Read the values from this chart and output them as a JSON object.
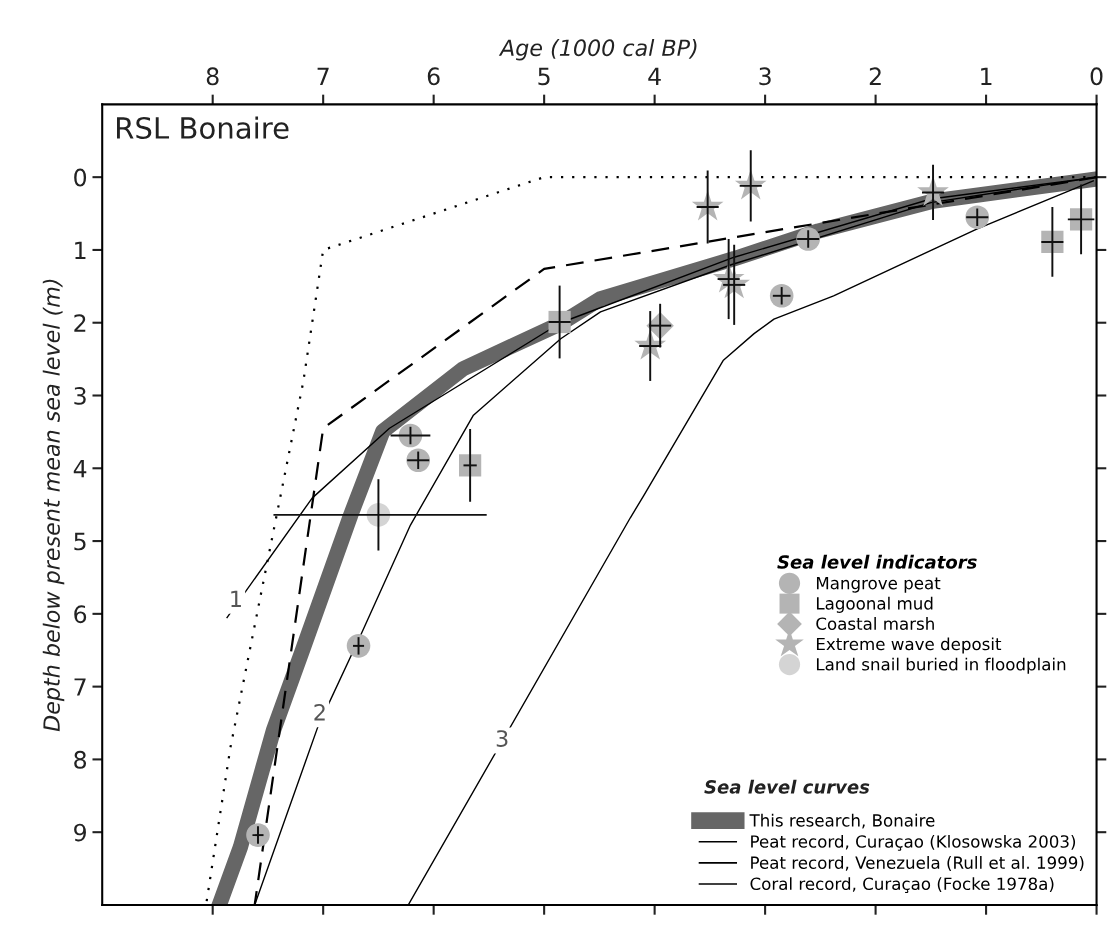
{
  "chart_data": {
    "type": "scatter",
    "title": "RSL Bonaire",
    "xlabel": "Age (1000 cal BP)",
    "ylabel": "Depth below present mean sea level (m)",
    "xlim": [
      9,
      0
    ],
    "ylim": [
      10,
      -1
    ],
    "xticks": [
      8,
      7,
      6,
      5,
      4,
      3,
      2,
      1,
      0
    ],
    "yticks": [
      0,
      1,
      2,
      3,
      4,
      5,
      6,
      7,
      8,
      9
    ],
    "grid": false,
    "legend": "bottom right",
    "legend_title": "Sea level indicators",
    "series": [
      {
        "name": "Mangrove peat",
        "marker": "circle",
        "color": "#b4b4b4",
        "x": [
          6.21,
          6.14,
          2.61,
          1.08,
          2.85,
          6.68,
          7.59
        ],
        "values": [
          3.55,
          3.89,
          0.85,
          0.55,
          1.63,
          6.44,
          9.04
        ],
        "errors": [
          0.12,
          0.12,
          0.12,
          0.12,
          0.12,
          0.12,
          0.12
        ],
        "xerrors": [
          0.18,
          0.1,
          0.1,
          0.1,
          0.08,
          0.05,
          0.05
        ]
      },
      {
        "name": "Lagoonal mud",
        "marker": "square",
        "color": "#b4b4b4",
        "x": [
          4.86,
          5.67,
          0.4,
          0.14
        ],
        "values": [
          1.99,
          3.96,
          0.89,
          0.58
        ],
        "errors": [
          0.5,
          0.5,
          0.48,
          0.48
        ],
        "xerrors": [
          0.1,
          0.06,
          0.1,
          0.12
        ]
      },
      {
        "name": "Coastal marsh",
        "marker": "diamond",
        "color": "#b4b4b4",
        "x": [
          3.95
        ],
        "values": [
          2.04
        ],
        "errors": [
          0.3
        ],
        "xerrors": [
          0.1
        ]
      },
      {
        "name": "Extreme wave deposit",
        "marker": "star",
        "color": "#b4b4b4",
        "x": [
          3.52,
          3.13,
          1.48,
          3.33,
          3.28,
          4.04
        ],
        "values": [
          0.41,
          0.12,
          0.21,
          1.4,
          1.48,
          2.32
        ],
        "errors": [
          0.5,
          0.49,
          0.38,
          0.55,
          0.55,
          0.48
        ],
        "xerrors": [
          0.1,
          0.1,
          0.1,
          0.1,
          0.1,
          0.1
        ]
      },
      {
        "name": "Land snail buried in floodplain",
        "marker": "circle",
        "color": "#d4d4d4",
        "x": [
          6.5
        ],
        "values": [
          4.64
        ],
        "errors": [
          0.49
        ],
        "xerrors": [
          [
            5.52,
            7.45
          ]
        ]
      },
      {
        "name": "This research, Bonaire",
        "type": "line",
        "line_style": "solid",
        "color": "#666666",
        "x": [
          0.03,
          1.48,
          2.52,
          3.28,
          4.49,
          4.85,
          5.73,
          6.46,
          6.75,
          7.18,
          7.45,
          7.75,
          7.94
        ],
        "values": [
          0.03,
          0.33,
          0.74,
          1.12,
          1.67,
          2.01,
          2.63,
          3.49,
          4.64,
          6.47,
          7.6,
          9.21,
          10.0
        ]
      },
      {
        "name": "Peat record, Curaçao (Klosowska 2003)",
        "type": "line",
        "line_style": "solid",
        "color": "#000000",
        "x": [
          0.0,
          1.5,
          3.28,
          4.85,
          6.4,
          7.1,
          7.87
        ],
        "values": [
          0.0,
          0.3,
          1.1,
          2.0,
          3.45,
          4.41,
          6.05
        ]
      },
      {
        "name": "Peat record, Venezuela (Rull et al. 1999)",
        "type": "line",
        "line_style": "solid",
        "color": "#000000",
        "x": [
          0.0,
          1.5,
          3.3,
          4.49,
          4.85,
          5.64,
          6.21,
          6.66,
          7.05,
          7.62
        ],
        "values": [
          0.0,
          0.35,
          1.2,
          1.85,
          2.22,
          3.27,
          4.78,
          6.29,
          7.56,
          10.0
        ]
      },
      {
        "name": "Coral record, Curaçao (Focke 1978a)",
        "type": "line",
        "line_style": "solid",
        "color": "#000000",
        "x": [
          0.03,
          1.08,
          2.38,
          2.92,
          3.1,
          3.38,
          4.1,
          4.22,
          6.23
        ],
        "values": [
          0.05,
          0.71,
          1.63,
          1.95,
          2.15,
          2.52,
          4.38,
          4.68,
          10.0
        ]
      },
      {
        "type": "line",
        "line_style": "dashed",
        "color": "#000000",
        "x": [
          0.0,
          5.0,
          7.0,
          7.62
        ],
        "values": [
          0.0,
          1.26,
          3.45,
          10.0
        ]
      },
      {
        "type": "line",
        "line_style": "dotted",
        "color": "#000000",
        "x": [
          0.0,
          5.0,
          7.0,
          7.18,
          7.54,
          7.84,
          8.06
        ],
        "values": [
          0.0,
          0.0,
          1.0,
          2.81,
          5.55,
          7.84,
          10.0
        ]
      }
    ],
    "annotations": [
      {
        "text": "Sea level curves"
      },
      {
        "text": "1",
        "x": 7.79,
        "y": 5.82
      },
      {
        "text": "2",
        "x": 7.03,
        "y": 7.38
      },
      {
        "text": "3",
        "x": 5.38,
        "y": 7.74
      }
    ]
  }
}
